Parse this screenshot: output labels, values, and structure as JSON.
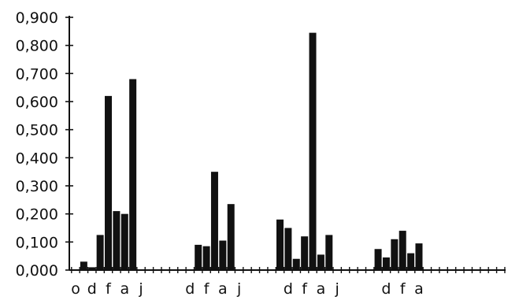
{
  "chart_data": {
    "type": "bar",
    "ylim": [
      0,
      0.9
    ],
    "y_ticks": [
      "0,000",
      "0,100",
      "0,200",
      "0,300",
      "0,400",
      "0,500",
      "0,600",
      "0,700",
      "0,800",
      "0,900"
    ],
    "grid": false,
    "x_slot_count": 57,
    "x_labels": [
      {
        "slot": 0,
        "label": "o"
      },
      {
        "slot": 2,
        "label": "d"
      },
      {
        "slot": 4,
        "label": "f"
      },
      {
        "slot": 6,
        "label": "a"
      },
      {
        "slot": 8,
        "label": "j"
      },
      {
        "slot": 14,
        "label": "d"
      },
      {
        "slot": 16,
        "label": "f"
      },
      {
        "slot": 18,
        "label": "a"
      },
      {
        "slot": 20,
        "label": "j"
      },
      {
        "slot": 26,
        "label": "d"
      },
      {
        "slot": 28,
        "label": "f"
      },
      {
        "slot": 30,
        "label": "a"
      },
      {
        "slot": 32,
        "label": "j"
      },
      {
        "slot": 38,
        "label": "d"
      },
      {
        "slot": 40,
        "label": "f"
      },
      {
        "slot": 42,
        "label": "a"
      }
    ],
    "bars": [
      {
        "slot": 1,
        "value": 0.03
      },
      {
        "slot": 2,
        "value": 0.01
      },
      {
        "slot": 3,
        "value": 0.125
      },
      {
        "slot": 4,
        "value": 0.62
      },
      {
        "slot": 5,
        "value": 0.21
      },
      {
        "slot": 6,
        "value": 0.2
      },
      {
        "slot": 7,
        "value": 0.68
      },
      {
        "slot": 15,
        "value": 0.09
      },
      {
        "slot": 16,
        "value": 0.085
      },
      {
        "slot": 17,
        "value": 0.35
      },
      {
        "slot": 18,
        "value": 0.105
      },
      {
        "slot": 19,
        "value": 0.235
      },
      {
        "slot": 25,
        "value": 0.18
      },
      {
        "slot": 26,
        "value": 0.15
      },
      {
        "slot": 27,
        "value": 0.04
      },
      {
        "slot": 28,
        "value": 0.12
      },
      {
        "slot": 29,
        "value": 0.845
      },
      {
        "slot": 30,
        "value": 0.055
      },
      {
        "slot": 31,
        "value": 0.125
      },
      {
        "slot": 37,
        "value": 0.075
      },
      {
        "slot": 38,
        "value": 0.045
      },
      {
        "slot": 39,
        "value": 0.11
      },
      {
        "slot": 40,
        "value": 0.14
      },
      {
        "slot": 41,
        "value": 0.06
      },
      {
        "slot": 42,
        "value": 0.095
      }
    ],
    "bar_color": "#111111"
  }
}
